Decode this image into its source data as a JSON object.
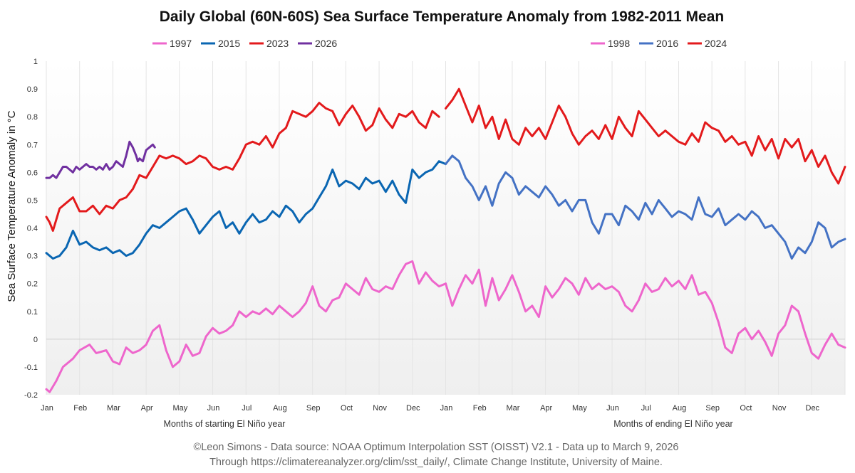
{
  "chart_data": {
    "type": "line",
    "title": "Daily Global (60N-60S) Sea Surface Temperature Anomaly from 1982-2011 Mean",
    "ylabel": "Sea Surface Temperature Anomaly in °C",
    "xlabel_left": "Months of starting El Niño year",
    "xlabel_right": "Months of ending El Niño year",
    "ylim": [
      -0.2,
      1
    ],
    "yticks": [
      -0.2,
      -0.1,
      0,
      0.1,
      0.2,
      0.3,
      0.4,
      0.5,
      0.6,
      0.7,
      0.8,
      0.9,
      1
    ],
    "ytick_labels": [
      "-0.2",
      "-0.1",
      "0",
      "0.1",
      "0.2",
      "0.3",
      "0.4",
      "0.5",
      "0.6",
      "0.7",
      "0.8",
      "0.9",
      "1"
    ],
    "xlim": [
      0,
      24
    ],
    "xticks": [
      "Jan",
      "Feb",
      "Mar",
      "Apr",
      "May",
      "Jun",
      "Jul",
      "Aug",
      "Sep",
      "Oct",
      "Nov",
      "Dec",
      "Jan",
      "Feb",
      "Mar",
      "Apr",
      "May",
      "Jun",
      "Jul",
      "Aug",
      "Sep",
      "Oct",
      "Nov",
      "Dec"
    ],
    "legend_left": [
      "1997",
      "2015",
      "2023",
      "2026"
    ],
    "legend_right": [
      "1998",
      "2016",
      "2024"
    ],
    "series": [
      {
        "name": "1997",
        "color": "#ee66cc",
        "x": [
          0,
          0.1,
          0.3,
          0.5,
          0.8,
          1.0,
          1.3,
          1.5,
          1.8,
          2.0,
          2.2,
          2.4,
          2.6,
          2.8,
          2.9,
          3.0,
          3.2,
          3.4,
          3.6,
          3.8,
          4.0,
          4.2,
          4.4,
          4.6,
          4.8,
          5.0,
          5.2,
          5.4,
          5.6,
          5.8,
          6.0,
          6.2,
          6.4,
          6.6,
          6.8,
          7.0,
          7.2,
          7.4,
          7.6,
          7.8,
          8.0,
          8.2,
          8.4,
          8.6,
          8.8,
          9.0,
          9.2,
          9.4,
          9.6,
          9.8,
          10.0,
          10.2,
          10.4,
          10.6,
          10.8,
          11.0,
          11.2,
          11.4,
          11.6,
          11.8,
          12.0
        ],
        "y": [
          -0.18,
          -0.19,
          -0.15,
          -0.1,
          -0.07,
          -0.04,
          -0.02,
          -0.05,
          -0.04,
          -0.08,
          -0.09,
          -0.03,
          -0.05,
          -0.04,
          -0.03,
          -0.02,
          0.03,
          0.05,
          -0.04,
          -0.1,
          -0.08,
          -0.02,
          -0.06,
          -0.05,
          0.01,
          0.04,
          0.02,
          0.03,
          0.05,
          0.1,
          0.08,
          0.1,
          0.09,
          0.11,
          0.09,
          0.12,
          0.1,
          0.08,
          0.1,
          0.13,
          0.19,
          0.12,
          0.1,
          0.14,
          0.15,
          0.2,
          0.18,
          0.16,
          0.22,
          0.18,
          0.17,
          0.19,
          0.18,
          0.23,
          0.27,
          0.28,
          0.2,
          0.24,
          0.21,
          0.19,
          0.2
        ]
      },
      {
        "name": "1998",
        "color": "#ee66cc",
        "x": [
          12.0,
          12.2,
          12.4,
          12.6,
          12.8,
          13.0,
          13.2,
          13.4,
          13.6,
          13.8,
          14.0,
          14.2,
          14.4,
          14.6,
          14.8,
          15.0,
          15.2,
          15.4,
          15.6,
          15.8,
          16.0,
          16.2,
          16.4,
          16.6,
          16.8,
          17.0,
          17.2,
          17.4,
          17.6,
          17.8,
          18.0,
          18.2,
          18.4,
          18.6,
          18.8,
          19.0,
          19.2,
          19.4,
          19.6,
          19.8,
          20.0,
          20.2,
          20.4,
          20.6,
          20.8,
          21.0,
          21.2,
          21.4,
          21.6,
          21.8,
          22.0,
          22.2,
          22.4,
          22.6,
          22.8,
          23.0,
          23.2,
          23.4,
          23.6,
          23.8,
          24.0
        ],
        "y": [
          0.2,
          0.12,
          0.18,
          0.23,
          0.2,
          0.25,
          0.12,
          0.22,
          0.14,
          0.18,
          0.23,
          0.17,
          0.1,
          0.12,
          0.08,
          0.19,
          0.15,
          0.18,
          0.22,
          0.2,
          0.16,
          0.22,
          0.18,
          0.2,
          0.18,
          0.19,
          0.17,
          0.12,
          0.1,
          0.14,
          0.2,
          0.17,
          0.18,
          0.22,
          0.19,
          0.21,
          0.18,
          0.23,
          0.16,
          0.17,
          0.13,
          0.06,
          -0.03,
          -0.05,
          0.02,
          0.04,
          0.0,
          0.03,
          -0.01,
          -0.06,
          0.02,
          0.05,
          0.12,
          0.1,
          0.02,
          -0.05,
          -0.07,
          -0.02,
          0.02,
          -0.02,
          -0.03
        ]
      },
      {
        "name": "2015",
        "color": "#0a66b2",
        "x": [
          0,
          0.2,
          0.4,
          0.6,
          0.8,
          1.0,
          1.2,
          1.4,
          1.6,
          1.8,
          2.0,
          2.2,
          2.4,
          2.6,
          2.8,
          3.0,
          3.2,
          3.4,
          3.6,
          3.8,
          4.0,
          4.2,
          4.4,
          4.6,
          4.8,
          5.0,
          5.2,
          5.4,
          5.6,
          5.8,
          6.0,
          6.2,
          6.4,
          6.6,
          6.8,
          7.0,
          7.2,
          7.4,
          7.6,
          7.8,
          8.0,
          8.2,
          8.4,
          8.6,
          8.8,
          9.0,
          9.2,
          9.4,
          9.6,
          9.8,
          10.0,
          10.2,
          10.4,
          10.6,
          10.8,
          11.0,
          11.2,
          11.4,
          11.6,
          11.8,
          12.0
        ],
        "y": [
          0.31,
          0.29,
          0.3,
          0.33,
          0.39,
          0.34,
          0.35,
          0.33,
          0.32,
          0.33,
          0.31,
          0.32,
          0.3,
          0.31,
          0.34,
          0.38,
          0.41,
          0.4,
          0.42,
          0.44,
          0.46,
          0.47,
          0.43,
          0.38,
          0.41,
          0.44,
          0.46,
          0.4,
          0.42,
          0.38,
          0.42,
          0.45,
          0.42,
          0.43,
          0.46,
          0.44,
          0.48,
          0.46,
          0.42,
          0.45,
          0.47,
          0.51,
          0.55,
          0.61,
          0.55,
          0.57,
          0.56,
          0.54,
          0.58,
          0.56,
          0.57,
          0.53,
          0.57,
          0.52,
          0.49,
          0.61,
          0.58,
          0.6,
          0.61,
          0.64,
          0.63
        ]
      },
      {
        "name": "2016",
        "color": "#4472c4",
        "x": [
          12.0,
          12.2,
          12.4,
          12.6,
          12.8,
          13.0,
          13.2,
          13.4,
          13.6,
          13.8,
          14.0,
          14.2,
          14.4,
          14.6,
          14.8,
          15.0,
          15.2,
          15.4,
          15.6,
          15.8,
          16.0,
          16.2,
          16.4,
          16.6,
          16.8,
          17.0,
          17.2,
          17.4,
          17.6,
          17.8,
          18.0,
          18.2,
          18.4,
          18.6,
          18.8,
          19.0,
          19.2,
          19.4,
          19.6,
          19.8,
          20.0,
          20.2,
          20.4,
          20.6,
          20.8,
          21.0,
          21.2,
          21.4,
          21.6,
          21.8,
          22.0,
          22.2,
          22.4,
          22.6,
          22.8,
          23.0,
          23.2,
          23.4,
          23.6,
          23.8,
          24.0
        ],
        "y": [
          0.63,
          0.66,
          0.64,
          0.58,
          0.55,
          0.5,
          0.55,
          0.48,
          0.56,
          0.6,
          0.58,
          0.52,
          0.55,
          0.53,
          0.51,
          0.55,
          0.52,
          0.48,
          0.5,
          0.46,
          0.5,
          0.5,
          0.42,
          0.38,
          0.45,
          0.45,
          0.41,
          0.48,
          0.46,
          0.43,
          0.49,
          0.45,
          0.5,
          0.47,
          0.44,
          0.46,
          0.45,
          0.43,
          0.51,
          0.45,
          0.44,
          0.47,
          0.41,
          0.43,
          0.45,
          0.43,
          0.46,
          0.44,
          0.4,
          0.41,
          0.38,
          0.35,
          0.29,
          0.33,
          0.31,
          0.35,
          0.42,
          0.4,
          0.33,
          0.35,
          0.36
        ]
      },
      {
        "name": "2023",
        "color": "#e31a1c",
        "x": [
          0,
          0.1,
          0.2,
          0.4,
          0.6,
          0.8,
          1.0,
          1.2,
          1.4,
          1.6,
          1.8,
          2.0,
          2.2,
          2.4,
          2.6,
          2.8,
          3.0,
          3.2,
          3.4,
          3.6,
          3.8,
          4.0,
          4.2,
          4.4,
          4.6,
          4.8,
          5.0,
          5.2,
          5.4,
          5.6,
          5.8,
          6.0,
          6.2,
          6.4,
          6.6,
          6.8,
          7.0,
          7.2,
          7.4,
          7.6,
          7.8,
          8.0,
          8.2,
          8.4,
          8.6,
          8.8,
          9.0,
          9.2,
          9.4,
          9.6,
          9.8,
          10.0,
          10.2,
          10.4,
          10.6,
          10.8,
          11.0,
          11.2,
          11.4,
          11.6,
          11.8
        ],
        "y": [
          0.44,
          0.42,
          0.39,
          0.47,
          0.49,
          0.51,
          0.46,
          0.46,
          0.48,
          0.45,
          0.48,
          0.47,
          0.5,
          0.51,
          0.54,
          0.59,
          0.58,
          0.62,
          0.66,
          0.65,
          0.66,
          0.65,
          0.63,
          0.64,
          0.66,
          0.65,
          0.62,
          0.61,
          0.62,
          0.61,
          0.65,
          0.7,
          0.71,
          0.7,
          0.73,
          0.69,
          0.74,
          0.76,
          0.82,
          0.81,
          0.8,
          0.82,
          0.85,
          0.83,
          0.82,
          0.77,
          0.81,
          0.84,
          0.8,
          0.75,
          0.77,
          0.83,
          0.79,
          0.76,
          0.81,
          0.8,
          0.82,
          0.78,
          0.76,
          0.82,
          0.8
        ]
      },
      {
        "name": "2024",
        "color": "#e31a1c",
        "x": [
          12.0,
          12.2,
          12.4,
          12.6,
          12.8,
          13.0,
          13.2,
          13.4,
          13.6,
          13.8,
          14.0,
          14.2,
          14.4,
          14.6,
          14.8,
          15.0,
          15.2,
          15.4,
          15.6,
          15.8,
          16.0,
          16.2,
          16.4,
          16.6,
          16.8,
          17.0,
          17.2,
          17.4,
          17.6,
          17.8,
          18.0,
          18.2,
          18.4,
          18.6,
          18.8,
          19.0,
          19.2,
          19.4,
          19.6,
          19.8,
          20.0,
          20.2,
          20.4,
          20.6,
          20.8,
          21.0,
          21.2,
          21.4,
          21.6,
          21.8,
          22.0,
          22.2,
          22.4,
          22.6,
          22.8,
          23.0,
          23.2,
          23.4,
          23.6,
          23.8,
          24.0
        ],
        "y": [
          0.83,
          0.86,
          0.9,
          0.84,
          0.78,
          0.84,
          0.76,
          0.8,
          0.72,
          0.79,
          0.72,
          0.7,
          0.76,
          0.73,
          0.76,
          0.72,
          0.78,
          0.84,
          0.8,
          0.74,
          0.7,
          0.73,
          0.75,
          0.72,
          0.77,
          0.72,
          0.8,
          0.76,
          0.73,
          0.82,
          0.79,
          0.76,
          0.73,
          0.75,
          0.73,
          0.71,
          0.7,
          0.74,
          0.71,
          0.78,
          0.76,
          0.75,
          0.71,
          0.73,
          0.7,
          0.71,
          0.66,
          0.73,
          0.68,
          0.72,
          0.65,
          0.72,
          0.69,
          0.72,
          0.64,
          0.68,
          0.62,
          0.66,
          0.6,
          0.56,
          0.62
        ]
      },
      {
        "name": "2026",
        "color": "#7030a0",
        "x": [
          0,
          0.1,
          0.2,
          0.3,
          0.4,
          0.5,
          0.6,
          0.7,
          0.8,
          0.9,
          1.0,
          1.1,
          1.2,
          1.3,
          1.4,
          1.5,
          1.6,
          1.7,
          1.8,
          1.9,
          2.0,
          2.1,
          2.2,
          2.3,
          2.4,
          2.5,
          2.6,
          2.7,
          2.75,
          2.8,
          2.9,
          3.0,
          3.1,
          3.2,
          3.26
        ],
        "y": [
          0.58,
          0.58,
          0.59,
          0.58,
          0.6,
          0.62,
          0.62,
          0.61,
          0.6,
          0.62,
          0.61,
          0.62,
          0.63,
          0.62,
          0.62,
          0.61,
          0.62,
          0.61,
          0.63,
          0.61,
          0.62,
          0.64,
          0.63,
          0.62,
          0.66,
          0.71,
          0.69,
          0.66,
          0.64,
          0.65,
          0.64,
          0.68,
          0.69,
          0.7,
          0.69
        ]
      }
    ]
  },
  "footer": {
    "line1": "©Leon Simons - Data source: NOAA Optimum Interpolation SST (OISST) V2.1 - Data up to March 9, 2026",
    "line2": "Through https://climatereanalyzer.org/clim/sst_daily/, Climate Change Institute, University of Maine."
  }
}
